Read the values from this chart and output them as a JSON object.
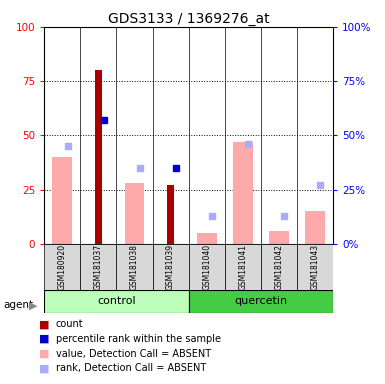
{
  "title": "GDS3133 / 1369276_at",
  "samples": [
    "GSM180920",
    "GSM181037",
    "GSM181038",
    "GSM181039",
    "GSM181040",
    "GSM181041",
    "GSM181042",
    "GSM181043"
  ],
  "count_values": [
    null,
    80,
    null,
    27,
    null,
    null,
    null,
    null
  ],
  "percentile_rank_values": [
    null,
    57,
    null,
    35,
    null,
    null,
    null,
    null
  ],
  "value_absent": [
    40,
    null,
    28,
    null,
    5,
    47,
    6,
    15
  ],
  "rank_absent": [
    45,
    null,
    35,
    null,
    13,
    46,
    13,
    27
  ],
  "ylim": [
    0,
    100
  ],
  "yticks": [
    0,
    25,
    50,
    75,
    100
  ],
  "count_color": "#aa0000",
  "percentile_color": "#0000cc",
  "value_absent_color": "#ffaaaa",
  "rank_absent_color": "#aaaaff",
  "control_color": "#bbffbb",
  "quercetin_color": "#44cc44",
  "control_label": "control",
  "quercetin_label": "quercetin",
  "agent_label": "agent",
  "legend_items": [
    [
      "#aa0000",
      "count"
    ],
    [
      "#0000cc",
      "percentile rank within the sample"
    ],
    [
      "#ffaaaa",
      "value, Detection Call = ABSENT"
    ],
    [
      "#aaaaff",
      "rank, Detection Call = ABSENT"
    ]
  ]
}
